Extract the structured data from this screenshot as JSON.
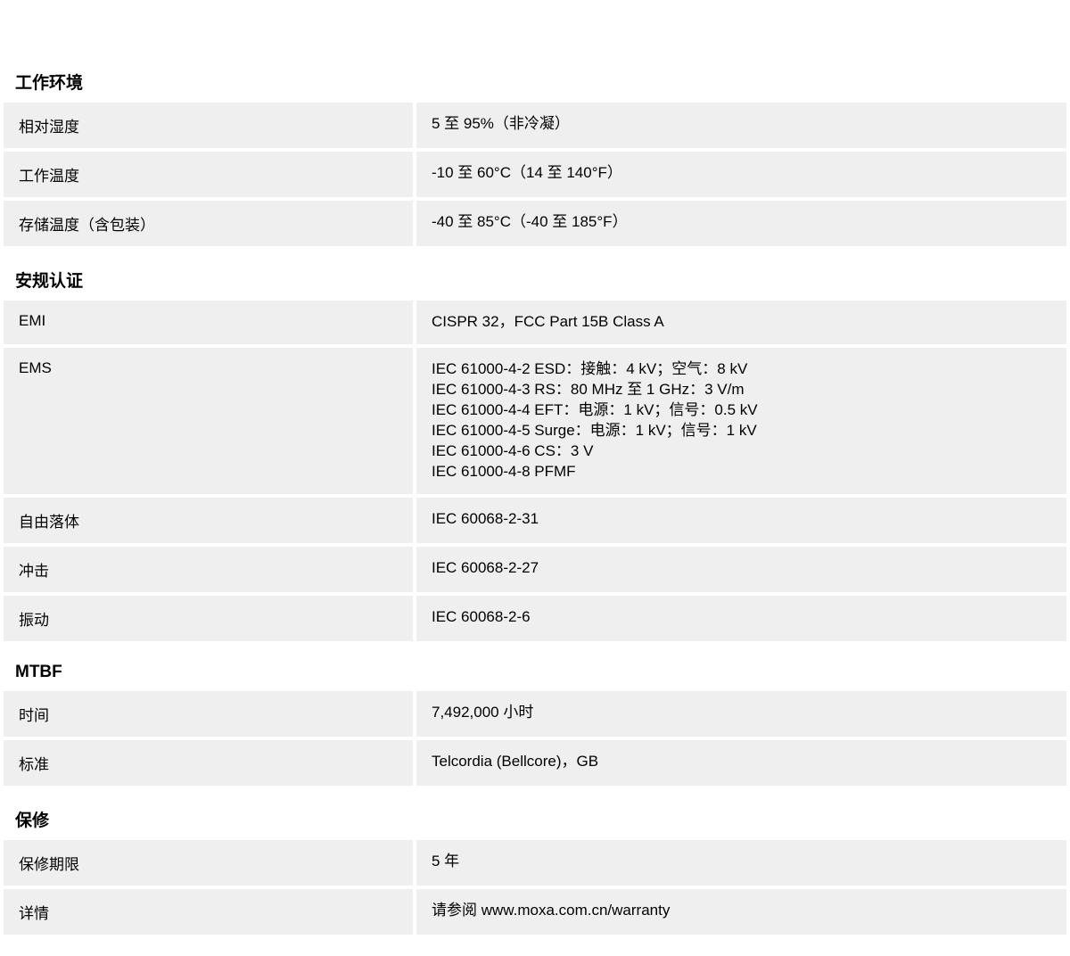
{
  "page": {
    "background_color": "#ffffff",
    "row_background": "#efefef",
    "text_color": "#000000",
    "label_column_width": 459,
    "row_gap": 4,
    "font_size_body": 17,
    "font_size_heading": 19
  },
  "sections": {
    "env": {
      "title": "工作环境",
      "rows": {
        "humidity": {
          "label": "相对湿度",
          "value": "5 至 95%（非冷凝）"
        },
        "operating_temp": {
          "label": "工作温度",
          "value": "-10 至 60°C（14 至 140°F）"
        },
        "storage_temp": {
          "label": "存储温度（含包装）",
          "value": "-40 至 85°C（-40 至 185°F）"
        }
      }
    },
    "cert": {
      "title": "安规认证",
      "rows": {
        "emi": {
          "label": "EMI",
          "value": "CISPR 32，FCC Part 15B Class A"
        },
        "ems": {
          "label": "EMS",
          "value": "IEC 61000-4-2 ESD：接触：4 kV；空气：8 kV\nIEC 61000-4-3 RS：80 MHz 至 1 GHz：3 V/m\nIEC 61000-4-4 EFT：电源：1 kV；信号：0.5 kV\nIEC 61000-4-5 Surge：电源：1 kV；信号：1 kV\nIEC 61000-4-6 CS：3 V\nIEC 61000-4-8 PFMF"
        },
        "freefall": {
          "label": "自由落体",
          "value": "IEC 60068-2-31"
        },
        "shock": {
          "label": "冲击",
          "value": "IEC 60068-2-27"
        },
        "vibration": {
          "label": "振动",
          "value": "IEC 60068-2-6"
        }
      }
    },
    "mtbf": {
      "title": "MTBF",
      "rows": {
        "time": {
          "label": "时间",
          "value": "7,492,000 小时"
        },
        "standard": {
          "label": "标准",
          "value": "Telcordia (Bellcore)，GB"
        }
      }
    },
    "warranty": {
      "title": "保修",
      "rows": {
        "period": {
          "label": "保修期限",
          "value": "5 年"
        },
        "details": {
          "label": "详情",
          "value": "请参阅 www.moxa.com.cn/warranty"
        }
      }
    }
  }
}
